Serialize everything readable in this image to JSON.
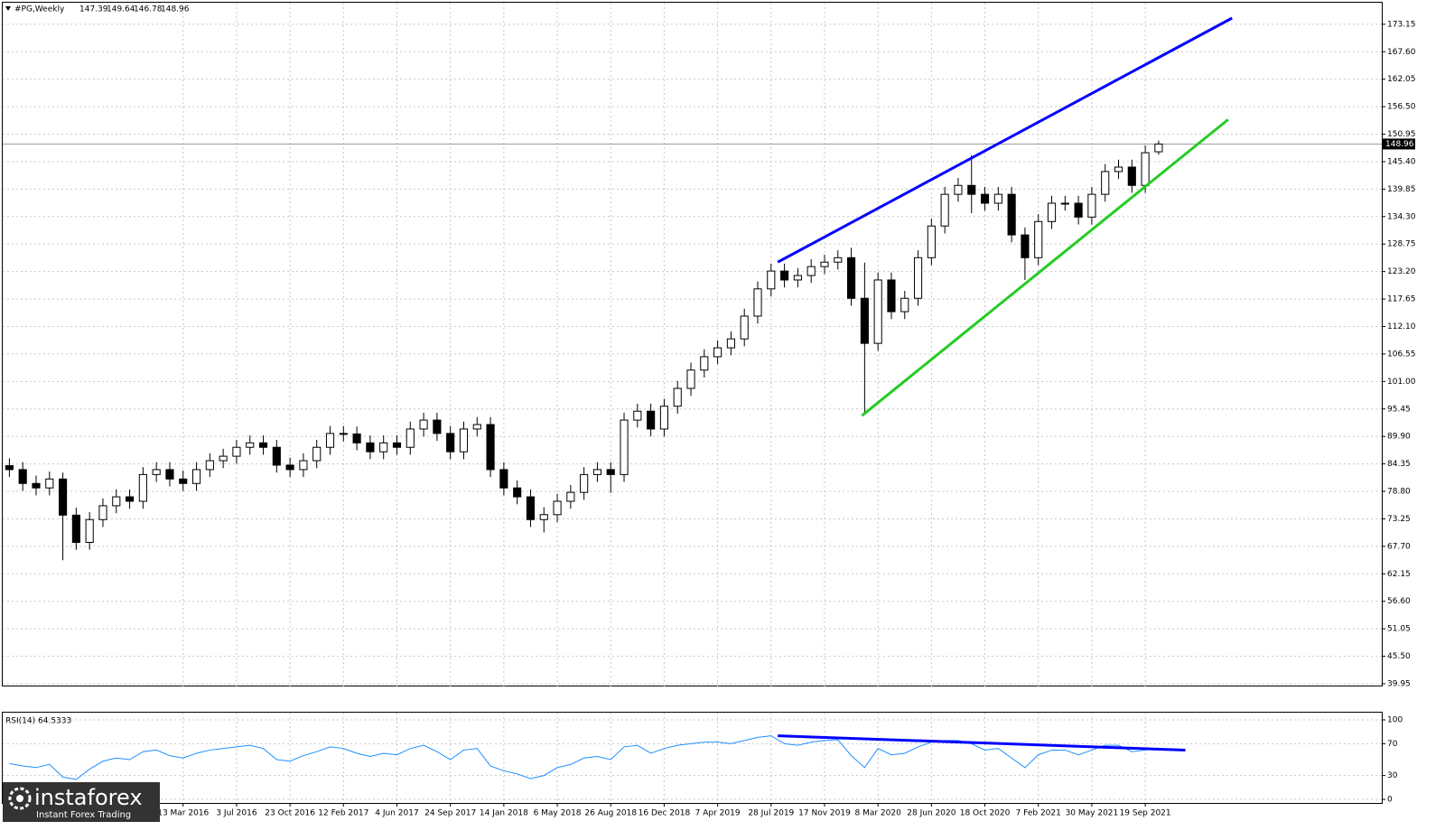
{
  "chart_data": {
    "type": "candlestick",
    "symbol": "#PG,Weekly",
    "categories": [
      null,
      null,
      null,
      null,
      null,
      null,
      null,
      null,
      null,
      null,
      null,
      null,
      null,
      "13 Mar 2016",
      null,
      null,
      null,
      "3 Jul 2016",
      null,
      null,
      null,
      "23 Oct 2016",
      null,
      null,
      null,
      "12 Feb 2017",
      null,
      null,
      null,
      "4 Jun 2017",
      null,
      null,
      null,
      "24 Sep 2017",
      null,
      null,
      null,
      "14 Jan 2018",
      null,
      null,
      null,
      "6 May 2018",
      null,
      null,
      null,
      "26 Aug 2018",
      null,
      null,
      null,
      "16 Dec 2018",
      null,
      null,
      null,
      "7 Apr 2019",
      null,
      null,
      null,
      "28 Jul 2019",
      null,
      null,
      null,
      "17 Nov 2019",
      null,
      null,
      null,
      "8 Mar 2020",
      null,
      null,
      null,
      "28 Jun 2020",
      null,
      null,
      null,
      "18 Oct 2020",
      null,
      null,
      null,
      "7 Feb 2021",
      null,
      null,
      null,
      "30 May 2021",
      null,
      null,
      null,
      "19 Sep 2021",
      null
    ],
    "open": [
      84.0,
      83.2,
      80.4,
      79.5,
      81.3,
      74.0,
      68.5,
      73.1,
      75.9,
      77.7,
      76.8,
      82.2,
      83.2,
      81.3,
      80.4,
      83.2,
      85.0,
      85.9,
      87.7,
      88.6,
      87.7,
      84.1,
      83.2,
      85.0,
      87.7,
      90.5,
      90.4,
      88.6,
      86.8,
      88.6,
      87.7,
      91.4,
      93.2,
      90.5,
      86.8,
      91.4,
      92.3,
      83.2,
      79.5,
      77.7,
      73.1,
      74.1,
      76.8,
      78.6,
      82.2,
      83.2,
      82.2,
      93.2,
      95.0,
      91.4,
      96.0,
      99.6,
      103.3,
      106.0,
      107.8,
      109.6,
      114.2,
      119.7,
      123.3,
      121.5,
      122.4,
      124.2,
      125.1,
      126.0,
      117.8,
      108.7,
      121.5,
      115.1,
      117.8,
      126.0,
      132.4,
      138.8,
      140.6,
      138.8,
      137.0,
      138.8,
      130.6,
      126.0,
      133.3,
      137.0,
      137.0,
      134.2,
      138.8,
      143.4,
      144.3,
      140.6,
      147.39
    ],
    "high": [
      85.5,
      84.7,
      82.0,
      82.8,
      82.6,
      75.5,
      74.6,
      77.4,
      79.2,
      79.2,
      83.7,
      84.7,
      84.7,
      83.0,
      84.7,
      86.5,
      87.4,
      89.2,
      90.1,
      90.1,
      89.2,
      85.6,
      86.5,
      89.2,
      92.0,
      92.0,
      91.9,
      90.1,
      90.1,
      90.1,
      92.9,
      94.7,
      94.7,
      92.0,
      92.9,
      93.8,
      93.8,
      84.7,
      81.0,
      79.2,
      75.6,
      78.3,
      80.1,
      83.7,
      84.7,
      84.7,
      94.7,
      96.5,
      96.5,
      97.5,
      101.1,
      104.8,
      107.5,
      109.3,
      111.1,
      115.7,
      121.2,
      124.8,
      124.8,
      123.9,
      125.7,
      126.6,
      127.5,
      128.0,
      125.0,
      123.0,
      123.0,
      119.3,
      127.5,
      133.9,
      140.3,
      142.1,
      146.7,
      140.3,
      140.3,
      140.3,
      132.1,
      134.8,
      138.5,
      138.5,
      138.5,
      140.3,
      144.9,
      145.8,
      145.8,
      148.7,
      149.64
    ],
    "low": [
      81.7,
      78.9,
      78.0,
      78.0,
      64.9,
      67.0,
      67.0,
      71.6,
      74.4,
      75.3,
      75.3,
      80.7,
      79.8,
      78.9,
      78.9,
      81.7,
      83.5,
      84.4,
      86.2,
      86.2,
      82.6,
      81.7,
      81.7,
      83.5,
      86.2,
      88.9,
      87.1,
      85.3,
      85.3,
      86.2,
      86.2,
      89.9,
      89.0,
      85.3,
      85.3,
      89.9,
      81.7,
      78.0,
      76.2,
      71.6,
      70.5,
      72.6,
      75.3,
      77.1,
      80.7,
      78.5,
      80.7,
      91.7,
      89.9,
      89.9,
      94.5,
      98.1,
      101.8,
      104.5,
      106.3,
      108.1,
      112.7,
      118.2,
      120.0,
      120.0,
      120.9,
      122.7,
      123.6,
      116.3,
      94.5,
      107.2,
      113.6,
      113.6,
      116.3,
      124.5,
      130.9,
      137.3,
      135.0,
      135.5,
      135.5,
      129.1,
      121.5,
      124.5,
      131.8,
      135.5,
      132.7,
      132.7,
      137.3,
      141.9,
      139.1,
      139.1,
      146.78
    ],
    "close": [
      83.2,
      80.4,
      79.5,
      81.3,
      74.0,
      68.5,
      73.1,
      75.9,
      77.7,
      76.8,
      82.2,
      83.2,
      81.3,
      80.4,
      83.2,
      85.0,
      85.9,
      87.7,
      88.6,
      87.7,
      84.1,
      83.2,
      85.0,
      87.7,
      90.5,
      90.4,
      88.6,
      86.8,
      88.6,
      87.7,
      91.4,
      93.2,
      90.5,
      86.8,
      91.4,
      92.3,
      83.2,
      79.5,
      77.7,
      73.1,
      74.1,
      76.8,
      78.6,
      82.2,
      83.2,
      82.2,
      93.2,
      95.0,
      91.4,
      96.0,
      99.6,
      103.3,
      106.0,
      107.8,
      109.6,
      114.2,
      119.7,
      123.3,
      121.5,
      122.4,
      124.2,
      125.1,
      126.0,
      117.8,
      108.7,
      121.5,
      115.1,
      117.8,
      126.0,
      132.4,
      138.8,
      140.6,
      138.8,
      137.0,
      138.8,
      130.6,
      126.0,
      133.3,
      137.0,
      137.0,
      134.2,
      138.8,
      143.4,
      144.3,
      140.6,
      147.2,
      148.96
    ],
    "xlim": [
      -0.5,
      102.7
    ],
    "ylim": [
      39.4,
      177.5
    ],
    "yticks": [
      39.95,
      {
        "value": 45.5,
        "label": "45.50"
      },
      51.05,
      {
        "value": 56.6,
        "label": "56.60"
      },
      62.15,
      {
        "value": 67.7,
        "label": "67.70"
      },
      73.25,
      {
        "value": 78.8,
        "label": "78.80"
      },
      84.35,
      {
        "value": 89.9,
        "label": "89.90"
      },
      95.45,
      {
        "value": 101,
        "label": "101.00"
      },
      106.55,
      {
        "value": 112.1,
        "label": "112.10"
      },
      117.65,
      {
        "value": 123.2,
        "label": "123.20"
      },
      128.75,
      {
        "value": 134.3,
        "label": "134.30"
      },
      139.85,
      {
        "value": 145.4,
        "label": "145.40"
      },
      150.95,
      {
        "value": 156.5,
        "label": "156.50"
      },
      162.05,
      {
        "value": 167.6,
        "label": "167.60"
      },
      173.15
    ],
    "grid": true,
    "trendlines": [
      {
        "color": "#0000ff",
        "x": [
          57.5,
          91.5
        ],
        "y": [
          125.1,
          174.4
        ]
      },
      {
        "color": "#22cc22",
        "x": [
          63.8,
          91.2
        ],
        "y": [
          94.1,
          153.9
        ]
      }
    ],
    "rsi": {
      "name": "RSI(14)",
      "color": "#1e90ff",
      "values": [
        45,
        42,
        40,
        44,
        28,
        25,
        38,
        48,
        52,
        50,
        60,
        62,
        55,
        52,
        58,
        62,
        64,
        66,
        68,
        64,
        50,
        48,
        55,
        60,
        66,
        64,
        58,
        54,
        58,
        56,
        64,
        68,
        60,
        50,
        62,
        64,
        42,
        36,
        32,
        26,
        30,
        40,
        44,
        52,
        54,
        50,
        66,
        68,
        58,
        64,
        68,
        70,
        72,
        72,
        70,
        74,
        78,
        80,
        70,
        68,
        72,
        74,
        75,
        55,
        40,
        64,
        56,
        58,
        66,
        72,
        74,
        74,
        70,
        62,
        64,
        52,
        40,
        56,
        62,
        62,
        56,
        62,
        68,
        68,
        60,
        62,
        64.5333
      ],
      "ylim": [
        0,
        100
      ],
      "yticks": [
        0,
        30,
        70,
        100
      ],
      "trendline": {
        "color": "#0000ff",
        "x": [
          57.5,
          88.0
        ],
        "y": [
          80,
          62
        ]
      }
    }
  },
  "watermark": {
    "brand": "instaforex",
    "tagline": "Instant Forex Trading"
  }
}
